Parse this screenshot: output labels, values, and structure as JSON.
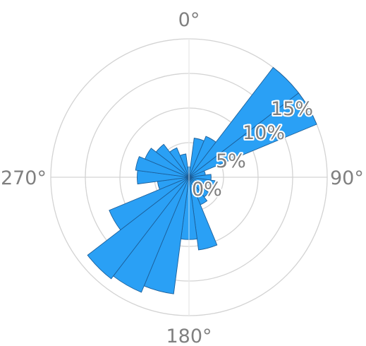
{
  "chart_data": {
    "type": "bar",
    "subtype": "polar-rose",
    "direction": "clockwise",
    "zero_direction": "top",
    "bar_color": "#2aa0f5",
    "bar_edge_color": "#1c5f9a",
    "grid": true,
    "angle_tick_labels": [
      "0°",
      "90°",
      "180°",
      "270°"
    ],
    "radial_tick_labels": [
      "0%",
      "5%",
      "10%",
      "15%"
    ],
    "radial_ticks": [
      0,
      5,
      10,
      15
    ],
    "rlim": [
      0,
      20
    ],
    "categories": [
      "0°",
      "15°",
      "30°",
      "45°",
      "60°",
      "75°",
      "90°",
      "105°",
      "120°",
      "135°",
      "150°",
      "165°",
      "180°",
      "195°",
      "210°",
      "225°",
      "240°",
      "255°",
      "270°",
      "285°",
      "300°",
      "315°",
      "330°",
      "345°"
    ],
    "values": [
      1.5,
      5.7,
      6.4,
      20.3,
      20.6,
      2.4,
      3.2,
      3.8,
      2.7,
      3.6,
      4.3,
      10.6,
      9.0,
      17.0,
      18.0,
      18.5,
      12.5,
      4.6,
      7.5,
      7.8,
      6.9,
      6.0,
      4.6,
      3.4
    ]
  }
}
